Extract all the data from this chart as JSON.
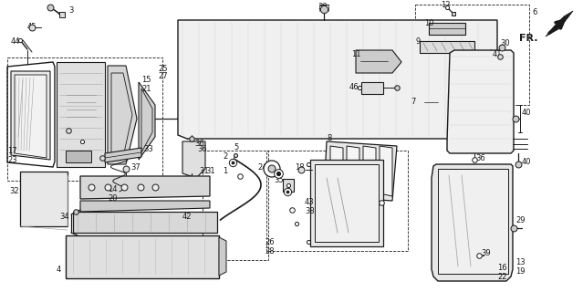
{
  "bg_color": "#ffffff",
  "line_color": "#1a1a1a",
  "fig_width": 6.39,
  "fig_height": 3.2,
  "dpi": 100
}
